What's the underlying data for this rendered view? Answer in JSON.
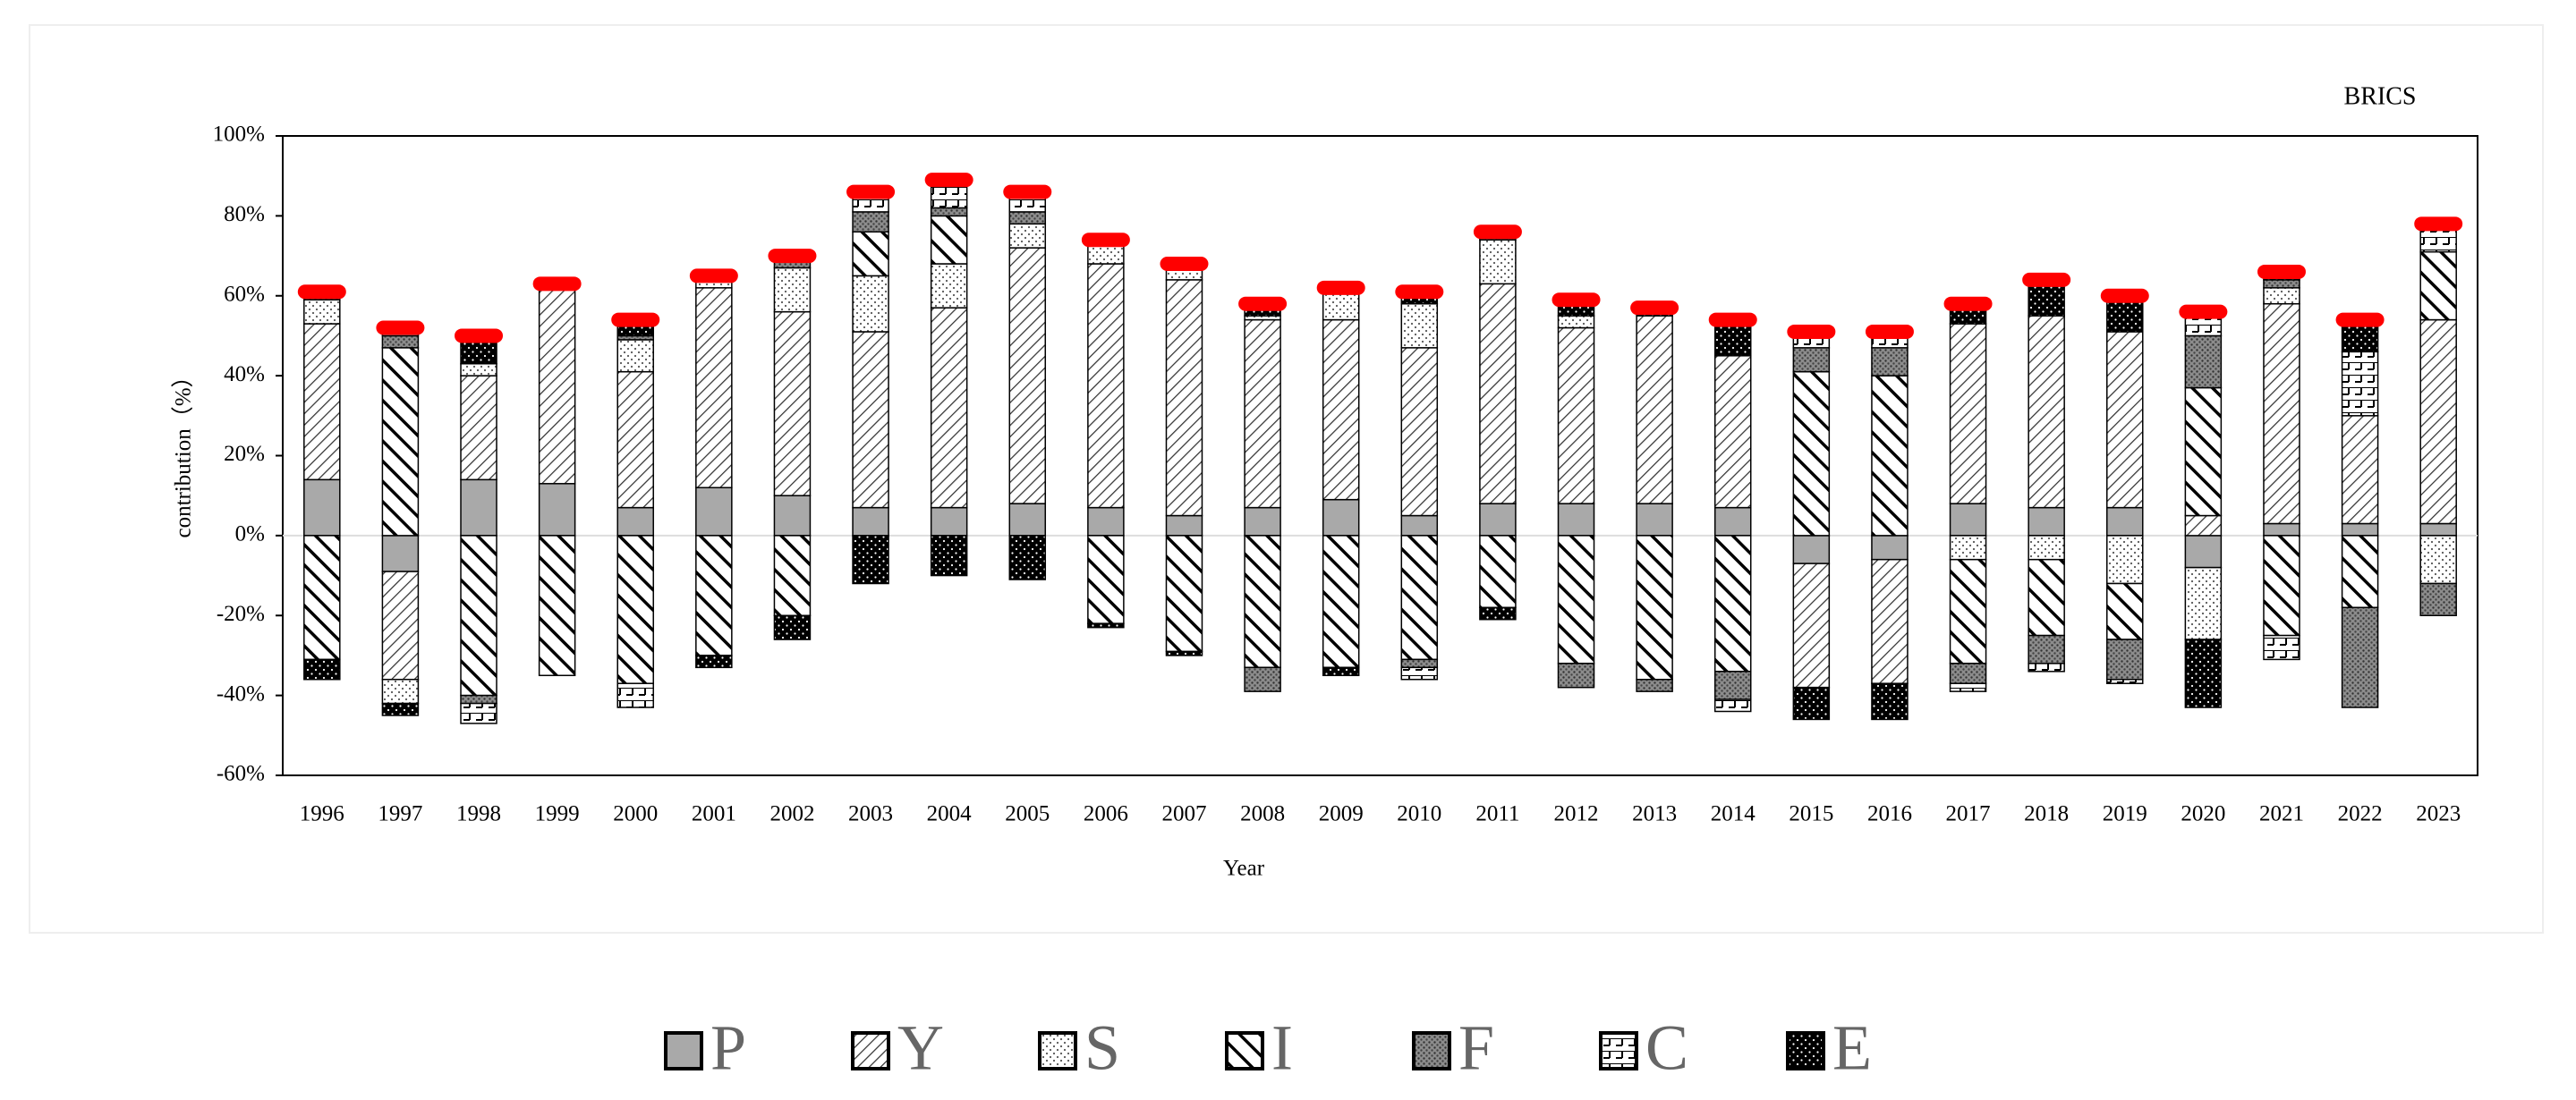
{
  "chart_data": {
    "type": "stacked-bar",
    "title": "BRICS",
    "x_label": "Year",
    "y_label": "contribution（%）",
    "categories": [
      "1996",
      "1997",
      "1998",
      "1999",
      "2000",
      "2001",
      "2002",
      "2003",
      "2004",
      "2005",
      "2006",
      "2007",
      "2008",
      "2009",
      "2010",
      "2011",
      "2012",
      "2013",
      "2014",
      "2015",
      "2016",
      "2017",
      "2018",
      "2019",
      "2020",
      "2021",
      "2022",
      "2023"
    ],
    "series": [
      {
        "name": "P",
        "pattern": "solid-grey",
        "values": [
          14,
          -9,
          14,
          13,
          7,
          12,
          10,
          7,
          7,
          8,
          7,
          5,
          7,
          9,
          5,
          8,
          8,
          8,
          7,
          -7,
          -6,
          8,
          7,
          7,
          -8,
          3,
          3,
          3
        ]
      },
      {
        "name": "Y",
        "pattern": "diagonal-thin",
        "values": [
          39,
          -27,
          26,
          49,
          34,
          50,
          46,
          44,
          50,
          64,
          61,
          59,
          47,
          45,
          42,
          55,
          44,
          47,
          38,
          -31,
          -31,
          45,
          48,
          44,
          5,
          55,
          27,
          51
        ]
      },
      {
        "name": "S",
        "pattern": "dots",
        "values": [
          6,
          -6,
          3,
          0,
          8,
          2,
          11,
          14,
          11,
          6,
          6,
          4,
          1,
          8,
          11,
          11,
          3,
          0,
          0,
          0,
          0,
          -6,
          -6,
          -12,
          -18,
          4,
          0,
          -12
        ]
      },
      {
        "name": "I",
        "pattern": "diagonal-bold",
        "values": [
          -31,
          47,
          -40,
          -35,
          -37,
          -30,
          -20,
          11,
          12,
          0,
          -22,
          -29,
          -33,
          -33,
          -31,
          -18,
          -32,
          -36,
          -34,
          41,
          40,
          -26,
          -19,
          -14,
          32,
          -25,
          -18,
          17
        ]
      },
      {
        "name": "F",
        "pattern": "crosshatch",
        "values": [
          2,
          3,
          -2,
          1,
          1,
          1,
          2,
          5,
          2,
          3,
          0,
          0,
          -6,
          0,
          -2,
          1,
          -6,
          -3,
          -7,
          6,
          7,
          -5,
          -7,
          -10,
          13,
          2,
          -25,
          -8
        ]
      },
      {
        "name": "C",
        "pattern": "brick",
        "values": [
          0,
          2,
          -5,
          0,
          -6,
          0,
          1,
          5,
          7,
          5,
          0,
          0,
          0,
          0,
          -3,
          1,
          0,
          0,
          -3,
          4,
          4,
          -2,
          -2,
          -1,
          6,
          -6,
          16,
          7
        ]
      },
      {
        "name": "E",
        "pattern": "black-dots",
        "values": [
          -5,
          -3,
          7,
          0,
          4,
          -3,
          -6,
          -12,
          -10,
          -11,
          -1,
          -1,
          3,
          -2,
          3,
          -3,
          4,
          2,
          9,
          -8,
          -9,
          5,
          9,
          9,
          -17,
          2,
          8,
          0
        ]
      }
    ],
    "ylim": [
      -60,
      100
    ],
    "yticks": [
      {
        "value": -60,
        "label": "-60%"
      },
      {
        "value": -40,
        "label": "-40%"
      },
      {
        "value": -20,
        "label": "-20%"
      },
      {
        "value": 0,
        "label": "0%"
      },
      {
        "value": 20,
        "label": "20%"
      },
      {
        "value": 40,
        "label": "40%"
      },
      {
        "value": 60,
        "label": "60%"
      },
      {
        "value": 80,
        "label": "80%"
      },
      {
        "value": 100,
        "label": "100%"
      }
    ],
    "marker_color": "#ff0000"
  }
}
